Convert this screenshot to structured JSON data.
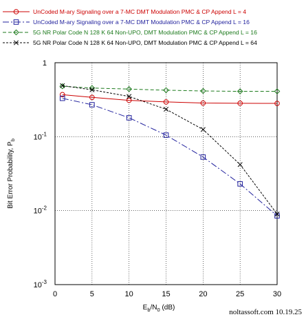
{
  "credit": "noltassoft.com 10.19.25",
  "chart_data": {
    "type": "line",
    "xlabel": {
      "base": "E",
      "sub1": "b",
      "mid": "/N",
      "sub2": "0",
      "unit": " (dB)"
    },
    "ylabel": {
      "base": "Bit Error Probability, P",
      "sub": "b"
    },
    "xlim": [
      0,
      30
    ],
    "ylim": [
      0.001,
      1
    ],
    "yscale": "log",
    "grid": true,
    "legend_position": "top",
    "x_ticks": [
      0,
      5,
      10,
      15,
      20,
      25,
      30
    ],
    "y_ticks": [
      {
        "value": 1,
        "base": "1",
        "exp": ""
      },
      {
        "value": 0.1,
        "base": "10",
        "exp": "-1"
      },
      {
        "value": 0.01,
        "base": "10",
        "exp": "-2"
      },
      {
        "value": 0.001,
        "base": "10",
        "exp": "-3"
      }
    ],
    "series": [
      {
        "name": "UnCoded M-ary Signaling over a 7-MC DMT Modulation PMC & CP Append L = 4",
        "color": "#cc0000",
        "marker": "circle",
        "dash": "",
        "legend_text_color": "#cc0000",
        "x": [
          1,
          5,
          10,
          15,
          20,
          25,
          30
        ],
        "y": [
          0.37,
          0.34,
          0.31,
          0.295,
          0.285,
          0.283,
          0.282
        ]
      },
      {
        "name": "UnCoded M-ary Signaling over a 7-MC DMT Modulation PMC & CP Append L = 16",
        "color": "#1f1f9c",
        "marker": "square",
        "dash": "9 3 2 3",
        "legend_text_color": "#1f1f9c",
        "x": [
          1,
          5,
          10,
          15,
          20,
          25,
          30
        ],
        "y": [
          0.33,
          0.27,
          0.18,
          0.105,
          0.053,
          0.023,
          0.0085
        ]
      },
      {
        "name": "5G NR Polar Code N 128 K 64 Non-UPO, DMT Modulation PMC & CP Append L = 16",
        "color": "#1c7a1c",
        "marker": "diamond",
        "dash": "5 3",
        "legend_text_color": "#1c7a1c",
        "x": [
          1,
          5,
          10,
          15,
          20,
          25,
          30
        ],
        "y": [
          0.48,
          0.455,
          0.44,
          0.425,
          0.415,
          0.41,
          0.41
        ]
      },
      {
        "name": "5G NR Polar Code N 128 K 64 Non-UPO, DMT Modulation PMC & CP Append L = 64",
        "color": "#000000",
        "marker": "x",
        "dash": "3 2",
        "legend_text_color": "#000000",
        "x": [
          1,
          5,
          10,
          15,
          20,
          25,
          30
        ],
        "y": [
          0.49,
          0.43,
          0.35,
          0.235,
          0.125,
          0.042,
          0.009
        ]
      }
    ]
  }
}
